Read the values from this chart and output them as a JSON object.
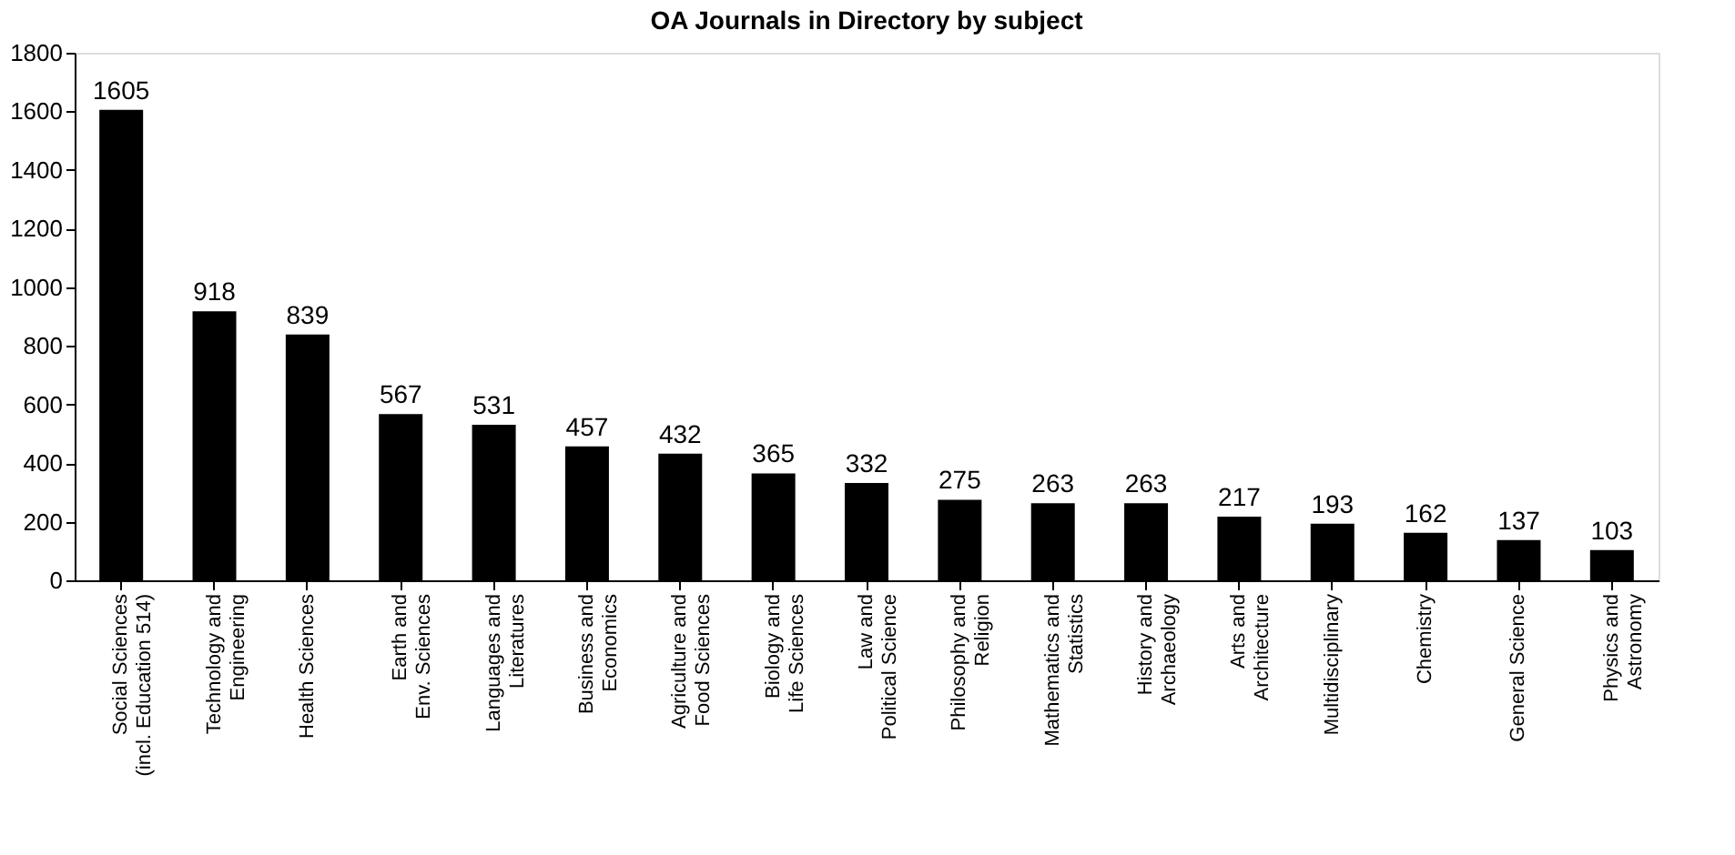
{
  "chart_data": {
    "type": "bar",
    "title": "OA Journals in Directory by subject",
    "categories": [
      "Social Sciences\n(incl. Education 514)",
      "Technology and\nEngineering",
      "Health Sciences",
      "Earth and\nEnv. Sciences",
      "Languages and\nLiteratures",
      "Business and\nEconomics",
      "Agriculture and\nFood Sciences",
      "Biology and\nLife Sciences",
      "Law and\nPolitical Science",
      "Philosophy and\nReligion",
      "Mathematics and\nStatistics",
      "History and\nArchaeology",
      "Arts and\nArchitecture",
      "Multidisciplinary",
      "Chemistry",
      "General Science",
      "Physics and\nAstronomy"
    ],
    "values": [
      1605,
      918,
      839,
      567,
      531,
      457,
      432,
      365,
      332,
      275,
      263,
      263,
      217,
      193,
      162,
      137,
      103
    ],
    "color": "#000000",
    "ylim": [
      0,
      1800
    ],
    "yticks": [
      0,
      200,
      400,
      600,
      800,
      1000,
      1200,
      1400,
      1600,
      1800
    ],
    "grid": false,
    "data_labels": true
  }
}
